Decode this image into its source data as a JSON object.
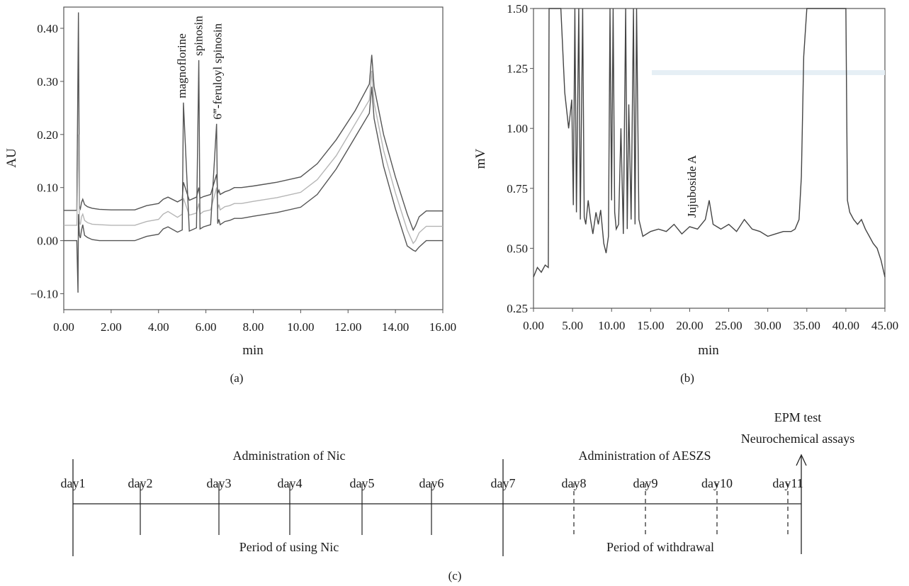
{
  "figure": {
    "panel_labels": [
      "(a)",
      "(b)",
      "(c)"
    ]
  },
  "chart_data": [
    {
      "id": "a",
      "type": "line",
      "xlabel": "min",
      "ylabel": "AU",
      "xlim": [
        0,
        16
      ],
      "ylim": [
        -0.13,
        0.44
      ],
      "x_ticks": [
        "0.00",
        "2.00",
        "4.00",
        "6.00",
        "8.00",
        "10.00",
        "12.00",
        "14.00",
        "16.00"
      ],
      "y_ticks": [
        "−0.10",
        "0.00",
        "0.10",
        "0.20",
        "0.30",
        "0.40"
      ],
      "grid": false,
      "legend": "none",
      "series": [
        {
          "color": "#555555",
          "x": [
            0,
            0.55,
            0.62,
            0.66,
            0.7,
            0.75,
            0.8,
            0.88,
            1.0,
            1.2,
            1.5,
            2.0,
            2.5,
            3.0,
            3.5,
            4.0,
            4.2,
            4.4,
            4.8,
            5.0,
            5.05,
            5.3,
            5.6,
            5.7,
            5.75,
            5.9,
            6.2,
            6.45,
            6.5,
            6.55,
            6.6,
            6.8,
            7.0,
            7.2,
            7.5,
            8.0,
            9.0,
            10.0,
            10.7,
            11.5,
            12.3,
            12.9,
            13.0,
            13.1,
            13.5,
            14.0,
            14.5,
            14.75,
            14.85,
            15.0,
            15.3,
            16.0
          ],
          "y": [
            0.057,
            0.057,
            0.43,
            0.065,
            0.06,
            0.072,
            0.078,
            0.068,
            0.064,
            0.061,
            0.059,
            0.058,
            0.058,
            0.058,
            0.066,
            0.07,
            0.078,
            0.082,
            0.073,
            0.078,
            0.11,
            0.076,
            0.082,
            0.1,
            0.08,
            0.083,
            0.087,
            0.125,
            0.089,
            0.095,
            0.087,
            0.092,
            0.095,
            0.1,
            0.1,
            0.103,
            0.11,
            0.12,
            0.145,
            0.19,
            0.245,
            0.295,
            0.35,
            0.29,
            0.2,
            0.12,
            0.05,
            0.02,
            0.028,
            0.045,
            0.056,
            0.056
          ]
        },
        {
          "color": "#b5b5b5",
          "x": [
            0,
            0.55,
            0.62,
            0.66,
            0.7,
            0.75,
            0.8,
            0.88,
            1.0,
            1.2,
            1.5,
            2.0,
            2.5,
            3.0,
            3.5,
            4.0,
            4.2,
            4.4,
            4.8,
            5.0,
            5.05,
            5.3,
            5.6,
            5.7,
            5.75,
            5.9,
            6.2,
            6.45,
            6.5,
            6.55,
            6.6,
            6.8,
            7.0,
            7.2,
            7.5,
            8.0,
            9.0,
            10.0,
            10.7,
            11.5,
            12.3,
            12.9,
            13.0,
            13.1,
            13.5,
            14.0,
            14.5,
            14.75,
            14.85,
            15.0,
            15.3,
            16.0
          ],
          "y": [
            0.029,
            0.029,
            0.2,
            0.035,
            0.03,
            0.045,
            0.05,
            0.038,
            0.034,
            0.031,
            0.03,
            0.029,
            0.029,
            0.029,
            0.036,
            0.04,
            0.05,
            0.055,
            0.044,
            0.05,
            0.08,
            0.048,
            0.052,
            0.07,
            0.05,
            0.055,
            0.058,
            0.1,
            0.06,
            0.068,
            0.058,
            0.064,
            0.066,
            0.07,
            0.07,
            0.074,
            0.081,
            0.091,
            0.115,
            0.16,
            0.22,
            0.265,
            0.32,
            0.26,
            0.17,
            0.09,
            0.02,
            -0.005,
            0.0,
            0.015,
            0.027,
            0.027
          ]
        },
        {
          "color": "#555555",
          "x": [
            0,
            0.55,
            0.6,
            0.62,
            0.66,
            0.7,
            0.75,
            0.8,
            0.88,
            1.0,
            1.2,
            1.5,
            2.0,
            2.5,
            3.0,
            3.5,
            4.0,
            4.2,
            4.4,
            4.8,
            5.0,
            5.05,
            5.3,
            5.6,
            5.7,
            5.75,
            5.9,
            6.2,
            6.45,
            6.5,
            6.55,
            6.6,
            6.8,
            7.0,
            7.2,
            7.5,
            8.0,
            9.0,
            10.0,
            10.7,
            11.5,
            12.3,
            12.9,
            13.0,
            13.1,
            13.5,
            14.0,
            14.5,
            14.75,
            14.85,
            15.0,
            15.3,
            16.0
          ],
          "y": [
            0.0,
            0.0,
            -0.098,
            0.05,
            0.01,
            0.005,
            0.02,
            0.03,
            0.01,
            0.006,
            0.002,
            0.0,
            0.0,
            0.0,
            0.0,
            0.008,
            0.012,
            0.022,
            0.026,
            0.016,
            0.02,
            0.26,
            0.018,
            0.024,
            0.34,
            0.022,
            0.026,
            0.03,
            0.22,
            0.032,
            0.04,
            0.03,
            0.036,
            0.038,
            0.042,
            0.042,
            0.046,
            0.053,
            0.063,
            0.087,
            0.135,
            0.195,
            0.24,
            0.29,
            0.23,
            0.14,
            0.06,
            -0.01,
            -0.018,
            -0.02,
            -0.012,
            0.0,
            0.0
          ]
        }
      ],
      "annotations": [
        {
          "text": "magnoflorine",
          "x": 5.0,
          "y": 0.26
        },
        {
          "text": "spinosin",
          "x": 5.7,
          "y": 0.34
        },
        {
          "text": "6‴-feruloyl spinosin",
          "x": 6.5,
          "y": 0.22
        }
      ]
    },
    {
      "id": "b",
      "type": "line",
      "xlabel": "min",
      "ylabel": "mV",
      "xlim": [
        0,
        45
      ],
      "ylim": [
        0.25,
        1.5
      ],
      "x_ticks": [
        "0.00",
        "5.00",
        "10.00",
        "15.00",
        "20.00",
        "25.00",
        "30.00",
        "35.00",
        "40.00",
        "45.00"
      ],
      "y_ticks": [
        "0.25",
        "0.50",
        "0.75",
        "1.00",
        "1.25",
        "1.50"
      ],
      "grid": false,
      "legend": "none",
      "series": [
        {
          "color": "#444444",
          "x": [
            0,
            0.5,
            1.0,
            1.5,
            1.9,
            2.0,
            2.2,
            2.5,
            3.0,
            3.5,
            4.0,
            4.5,
            4.9,
            5.1,
            5.3,
            5.5,
            5.8,
            6.0,
            6.3,
            6.5,
            6.7,
            7.0,
            7.3,
            7.6,
            8.0,
            8.3,
            8.6,
            9.0,
            9.3,
            9.6,
            9.8,
            10.0,
            10.2,
            10.4,
            10.6,
            10.9,
            11.2,
            11.5,
            11.8,
            12.0,
            12.2,
            12.5,
            12.8,
            13.0,
            13.2,
            13.5,
            14.0,
            15.0,
            16.0,
            17.0,
            18.0,
            19.0,
            20.0,
            21.0,
            22.0,
            22.5,
            23.0,
            24.0,
            25.0,
            26.0,
            27.0,
            28.0,
            29.0,
            30.0,
            31.0,
            32.0,
            33.0,
            33.5,
            34.0,
            34.3,
            34.6,
            35.0,
            35.5,
            36.0,
            37.0,
            38.0,
            39.0,
            39.8,
            40.0,
            40.2,
            40.5,
            41.0,
            41.5,
            42.0,
            42.5,
            43.0,
            43.5,
            44.0,
            44.5,
            45.0
          ],
          "y": [
            0.38,
            0.42,
            0.4,
            0.43,
            0.42,
            1.5,
            1.5,
            1.5,
            1.5,
            1.5,
            1.15,
            1.0,
            1.12,
            0.68,
            1.5,
            0.65,
            1.5,
            0.62,
            1.5,
            0.63,
            0.6,
            0.7,
            0.62,
            0.56,
            0.65,
            0.6,
            0.66,
            0.52,
            0.48,
            0.55,
            1.5,
            0.7,
            1.5,
            0.65,
            0.58,
            0.6,
            1.0,
            0.56,
            1.5,
            0.58,
            1.1,
            0.62,
            1.5,
            0.6,
            1.5,
            0.62,
            0.55,
            0.57,
            0.58,
            0.57,
            0.6,
            0.56,
            0.59,
            0.58,
            0.62,
            0.7,
            0.6,
            0.58,
            0.6,
            0.57,
            0.62,
            0.58,
            0.57,
            0.55,
            0.56,
            0.57,
            0.57,
            0.58,
            0.62,
            0.8,
            1.3,
            1.5,
            1.5,
            1.5,
            1.5,
            1.5,
            1.5,
            1.5,
            1.5,
            0.7,
            0.65,
            0.62,
            0.6,
            0.62,
            0.58,
            0.55,
            0.52,
            0.5,
            0.45,
            0.38
          ]
        }
      ],
      "annotations": [
        {
          "text": "Jujuboside A",
          "x": 20.3,
          "y": 0.61
        }
      ]
    }
  ],
  "timeline": {
    "phase_top": [
      "Administration of Nic",
      "Administration of AESZS"
    ],
    "phase_bottom": [
      "Period of using Nic",
      "Period of withdrawal"
    ],
    "days": [
      "day1",
      "day2",
      "day3",
      "day4",
      "day5",
      "day6",
      "day7",
      "day8",
      "day9",
      "day10",
      "day11"
    ],
    "endpoint": [
      "EPM test",
      "Neurochemical assays"
    ]
  }
}
